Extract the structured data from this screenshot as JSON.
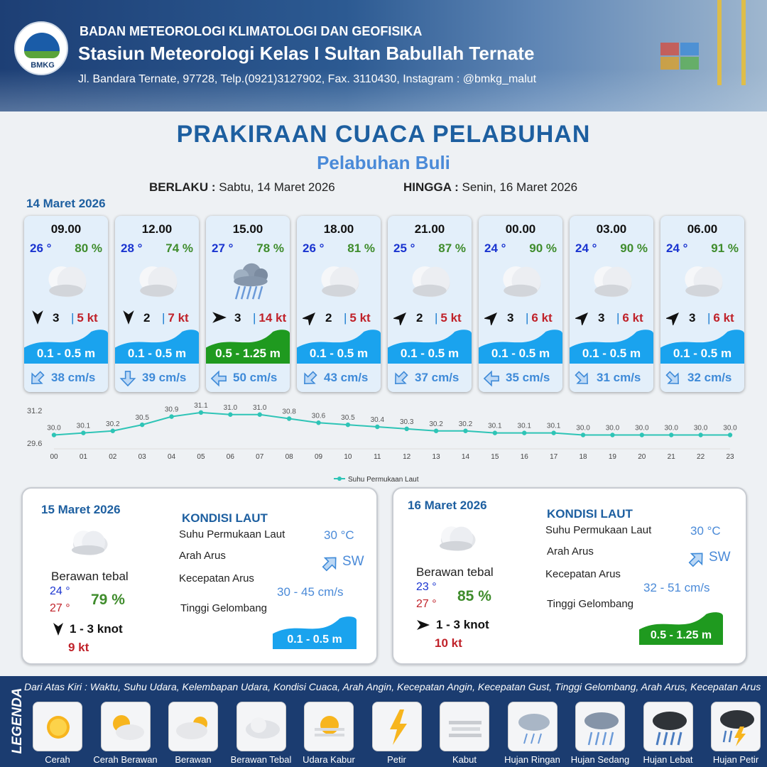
{
  "header": {
    "logo_text": "BMKG",
    "org": "BADAN METEOROLOGI KLIMATOLOGI DAN GEOFISIKA",
    "station": "Stasiun Meteorologi Kelas I Sultan Babullah Ternate",
    "address": "Jl. Bandara Ternate, 97728, Telp.(0921)3127902, Fax. 3110430, Instagram : @bmkg_malut"
  },
  "title": "PRAKIRAAN CUACA PELABUHAN",
  "subtitle": "Pelabuhan Buli",
  "validity": {
    "from_label": "BERLAKU :",
    "from_value": "Sabtu, 14 Maret 2026",
    "to_label": "HINGGA :",
    "to_value": "Senin, 16 Maret 2026"
  },
  "day1_label": "14 Maret 2026",
  "cards": [
    {
      "time": "09.00",
      "temp": "26 °",
      "humidity": "80 %",
      "condition": "berawan-tebal",
      "wind_dir": "N",
      "wind_speed": "3",
      "gust": "5 kt",
      "wave": "0.1 - 0.5 m",
      "wave_class": "low",
      "current_dir": "NE",
      "current": "38 cm/s"
    },
    {
      "time": "12.00",
      "temp": "28 °",
      "humidity": "74 %",
      "condition": "berawan-tebal",
      "wind_dir": "N",
      "wind_speed": "2",
      "gust": "7 kt",
      "wave": "0.1 - 0.5 m",
      "wave_class": "low",
      "current_dir": "N",
      "current": "39 cm/s"
    },
    {
      "time": "15.00",
      "temp": "27 °",
      "humidity": "78 %",
      "condition": "hujan-ringan",
      "wind_dir": "W",
      "wind_speed": "3",
      "gust": "14 kt",
      "wave": "0.5 - 1.25 m",
      "wave_class": "mid",
      "current_dir": "E",
      "current": "50 cm/s"
    },
    {
      "time": "18.00",
      "temp": "26 °",
      "humidity": "81 %",
      "condition": "berawan-tebal",
      "wind_dir": "SW",
      "wind_speed": "2",
      "gust": "5 kt",
      "wave": "0.1 - 0.5 m",
      "wave_class": "low",
      "current_dir": "NE",
      "current": "43 cm/s"
    },
    {
      "time": "21.00",
      "temp": "25 °",
      "humidity": "87 %",
      "condition": "berawan-tebal",
      "wind_dir": "SW",
      "wind_speed": "2",
      "gust": "5 kt",
      "wave": "0.1 - 0.5 m",
      "wave_class": "low",
      "current_dir": "NE",
      "current": "37 cm/s"
    },
    {
      "time": "00.00",
      "temp": "24 °",
      "humidity": "90 %",
      "condition": "berawan-tebal",
      "wind_dir": "SW",
      "wind_speed": "3",
      "gust": "6 kt",
      "wave": "0.1 - 0.5 m",
      "wave_class": "low",
      "current_dir": "E",
      "current": "35 cm/s"
    },
    {
      "time": "03.00",
      "temp": "24 °",
      "humidity": "90 %",
      "condition": "berawan-tebal",
      "wind_dir": "SW",
      "wind_speed": "3",
      "gust": "6 kt",
      "wave": "0.1 - 0.5 m",
      "wave_class": "low",
      "current_dir": "NW",
      "current": "31 cm/s"
    },
    {
      "time": "06.00",
      "temp": "24 °",
      "humidity": "91 %",
      "condition": "berawan-tebal",
      "wind_dir": "SW",
      "wind_speed": "3",
      "gust": "6 kt",
      "wave": "0.1 - 0.5 m",
      "wave_class": "low",
      "current_dir": "NW",
      "current": "32 cm/s"
    }
  ],
  "chart_data": {
    "type": "line",
    "x": [
      "00",
      "01",
      "02",
      "03",
      "04",
      "05",
      "06",
      "07",
      "08",
      "09",
      "10",
      "11",
      "12",
      "13",
      "14",
      "15",
      "16",
      "17",
      "18",
      "19",
      "20",
      "21",
      "22",
      "23"
    ],
    "series": [
      {
        "name": "Suhu Permukaan Laut",
        "values": [
          30.0,
          30.1,
          30.2,
          30.5,
          30.9,
          31.1,
          31.0,
          31.0,
          30.8,
          30.6,
          30.5,
          30.4,
          30.3,
          30.2,
          30.2,
          30.1,
          30.1,
          30.1,
          30.0,
          30.0,
          30.0,
          30.0,
          30.0,
          30.0
        ],
        "color": "#2ec4b6"
      }
    ],
    "ylim": [
      29.6,
      31.2
    ],
    "yticks": [
      "31.2",
      "29.6"
    ],
    "data_labels": [
      "30.0",
      "30.1",
      "30.2",
      "30.5",
      "30.9",
      "31.1",
      "31.0",
      "31.0",
      "30.8",
      "30.6",
      "30.5",
      "30.4",
      "30.3",
      "30.2",
      "30.2",
      "30.1",
      "30.1",
      "30.1",
      "30.0",
      "30.0",
      "30.0",
      "30.0",
      "30.0",
      "30.0"
    ],
    "legend": "bottom"
  },
  "panels": [
    {
      "date": "15 Maret 2026",
      "condition": "Berawan tebal",
      "temp_min": "24 °",
      "temp_max": "27 °",
      "humidity": "79 %",
      "wind": "1 - 3 knot",
      "wind_dir": "N",
      "gust": "9 kt",
      "sea_title": "KONDISI LAUT",
      "sst_label": "Suhu Permukaan Laut",
      "sst": "30 °C",
      "curdir_label": "Arah Arus",
      "curdir": "SW",
      "curspeed_label": "Kecepatan Arus",
      "curspeed": "30  - 45 cm/s",
      "wave_label": "Tinggi Gelombang",
      "wave": "0.1 - 0.5 m",
      "wave_class": "low"
    },
    {
      "date": "16 Maret 2026",
      "condition": "Berawan tebal",
      "temp_min": "23 °",
      "temp_max": "27 °",
      "humidity": "85 %",
      "wind": "1 - 3 knot",
      "wind_dir": "W",
      "gust": "10 kt",
      "sea_title": "KONDISI LAUT",
      "sst_label": "Suhu Permukaan Laut",
      "sst": "30 °C",
      "curdir_label": "Arah Arus",
      "curdir": "SW",
      "curspeed_label": "Kecepatan Arus",
      "curspeed": "32  - 51 cm/s",
      "wave_label": "Tinggi Gelombang",
      "wave": "0.5 - 1.25 m",
      "wave_class": "mid"
    }
  ],
  "legend": {
    "title": "LEGENDA",
    "description": "Dari Atas Kiri : Waktu, Suhu Udara, Kelembapan Udara, Kondisi Cuaca, Arah Angin, Kecepatan Angin, Kecepatan Gust, Tinggi Gelombang, Arah Arus, Kecepatan Arus",
    "items": [
      {
        "name": "Cerah",
        "icon": "sun-icon"
      },
      {
        "name": "Cerah Berawan",
        "icon": "sun-cloud-icon"
      },
      {
        "name": "Berawan",
        "icon": "cloud-sun-icon"
      },
      {
        "name": "Berawan Tebal",
        "icon": "cloud-icon"
      },
      {
        "name": "Udara Kabur",
        "icon": "haze-icon"
      },
      {
        "name": "Petir",
        "icon": "lightning-icon"
      },
      {
        "name": "Kabut",
        "icon": "fog-icon"
      },
      {
        "name": "Hujan Ringan",
        "icon": "light-rain-icon"
      },
      {
        "name": "Hujan Sedang",
        "icon": "moderate-rain-icon"
      },
      {
        "name": "Hujan Lebat",
        "icon": "heavy-rain-icon"
      },
      {
        "name": "Hujan Petir",
        "icon": "thunderstorm-icon"
      }
    ]
  },
  "colors": {
    "temp": "#1a34d0",
    "humidity": "#3f8c2c",
    "gust": "#c0222a",
    "wave_low": "#1aa3ee",
    "wave_mid": "#1f9a1f",
    "current": "#3e8ad8",
    "title": "#1d5fa0"
  }
}
